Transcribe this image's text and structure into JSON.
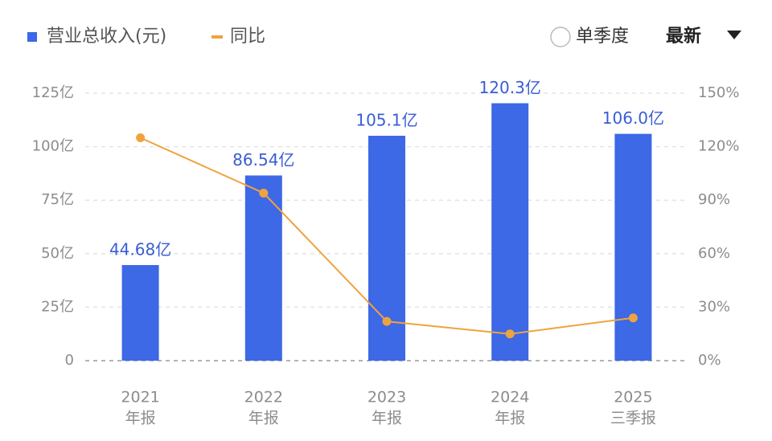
{
  "chart_data": {
    "type": "bar",
    "categories": [
      [
        "2021",
        "年报"
      ],
      [
        "2022",
        "年报"
      ],
      [
        "2023",
        "年报"
      ],
      [
        "2024",
        "年报"
      ],
      [
        "2025",
        "三季报"
      ]
    ],
    "series": [
      {
        "name": "营业总收入(元)",
        "color": "#3d68e6",
        "type": "bar",
        "values": [
          44.68,
          86.54,
          105.1,
          120.3,
          106.0
        ],
        "value_labels": [
          "44.68亿",
          "86.54亿",
          "105.1亿",
          "120.3亿",
          "106.0亿"
        ]
      },
      {
        "name": "同比",
        "color": "#efa33e",
        "type": "line",
        "axis": "y2",
        "values": [
          125,
          94,
          22,
          15,
          24
        ]
      }
    ],
    "ylim": [
      0,
      125
    ],
    "yticks": [
      0,
      {
        "value": 25,
        "label": "25亿"
      },
      {
        "value": 50,
        "label": "50亿"
      },
      {
        "value": 75,
        "label": "75亿"
      },
      {
        "value": 100,
        "label": "100亿"
      },
      {
        "value": 125,
        "label": "125亿"
      }
    ],
    "y2lim": [
      0,
      150
    ],
    "y2ticks": [
      {
        "value": 0,
        "label": "0%"
      },
      {
        "value": 30,
        "label": "30%"
      },
      {
        "value": 60,
        "label": "60%"
      },
      {
        "value": 90,
        "label": "90%"
      },
      {
        "value": 120,
        "label": "120%"
      },
      {
        "value": 150,
        "label": "150%"
      }
    ],
    "grid": true
  },
  "controls": {
    "quarterly": "单季度",
    "period": "最新"
  }
}
